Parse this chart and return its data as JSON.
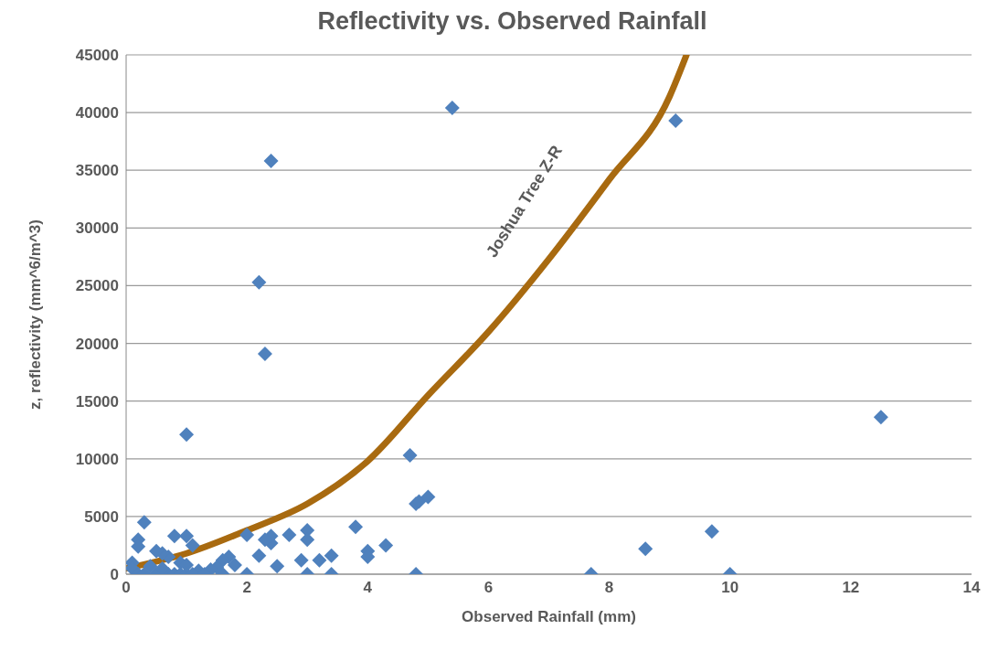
{
  "chart_data": {
    "type": "scatter",
    "title": "Reflectivity vs. Observed Rainfall",
    "xlabel": "Observed Rainfall (mm)",
    "ylabel": "z, reflectivity (mm^6/m^3)",
    "xlim": [
      0,
      14
    ],
    "xticks": [
      0,
      2,
      4,
      6,
      8,
      10,
      12,
      14
    ],
    "ylim": [
      0,
      45000
    ],
    "yticks": [
      0,
      5000,
      10000,
      15000,
      20000,
      25000,
      30000,
      35000,
      40000,
      45000
    ],
    "grid": "y",
    "series": [
      {
        "marker": "diamond",
        "color": "#4f81bd",
        "x": [
          1.0,
          2.2,
          2.3,
          2.4,
          5.4,
          9.1,
          12.5,
          4.7,
          4.8,
          4.85,
          5.0,
          9.7,
          8.6,
          7.7,
          10.0,
          4.8,
          4.3,
          3.8,
          4.0,
          4.0,
          3.0,
          3.0,
          2.7,
          2.9,
          3.2,
          3.4,
          3.4,
          3.0,
          2.5,
          2.4,
          2.4,
          2.3,
          2.2,
          2.0,
          2.0,
          1.8,
          1.7,
          1.6,
          1.6,
          1.5,
          1.4,
          1.2,
          1.1,
          1.0,
          0.8,
          0.7,
          0.6,
          0.5,
          0.3,
          0.2,
          0.2,
          0.1,
          0.1,
          0.2,
          0.3,
          0.5,
          0.7,
          0.8,
          0.9,
          1.0,
          1.1,
          1.3,
          0.9,
          1.0,
          0.4,
          0.6
        ],
        "values": [
          12100,
          25300,
          19100,
          35800,
          40400,
          39300,
          13600,
          10300,
          6100,
          6300,
          6700,
          3700,
          2200,
          0,
          0,
          0,
          2500,
          4100,
          2000,
          1500,
          3800,
          3000,
          3400,
          1200,
          1200,
          1600,
          0,
          0,
          700,
          2700,
          3300,
          3000,
          1600,
          3400,
          0,
          800,
          1500,
          1200,
          0,
          600,
          400,
          300,
          2500,
          3300,
          3300,
          1500,
          1800,
          2000,
          4500,
          3000,
          2400,
          1000,
          500,
          0,
          0,
          0,
          0,
          0,
          0,
          0,
          0,
          0,
          1000,
          800,
          700,
          500
        ]
      },
      {
        "type": "line",
        "name": "Joshua Tree Z-R",
        "color": "#a86a10",
        "x": [
          0,
          1,
          2,
          3,
          4,
          5,
          6,
          7,
          8,
          9,
          9.28
        ],
        "values": [
          500,
          1800,
          3800,
          6100,
          9800,
          15500,
          21000,
          27300,
          34200,
          41400,
          45000
        ]
      }
    ]
  }
}
